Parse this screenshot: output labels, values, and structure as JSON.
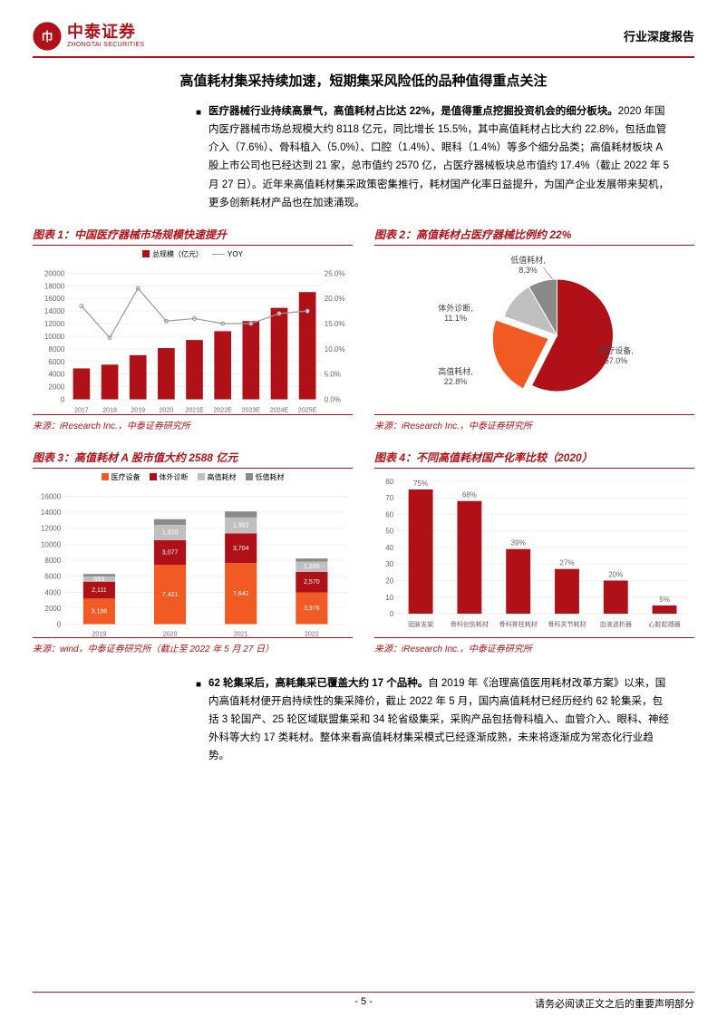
{
  "header": {
    "logo_cn": "中泰证券",
    "logo_en": "ZHONGTAI SECURITIES",
    "doc_type": "行业深度报告"
  },
  "section_title": "高值耗材集采持续加速，短期集采风险低的品种值得重点关注",
  "para1": {
    "bold": "医疗器械行业持续高景气，高值耗材占比达 22%，是值得重点挖掘投资机会的细分板块。",
    "rest": "2020 年国内医疗器械市场总规模大约 8118 亿元，同比增长 15.5%，其中高值耗材占比大约 22.8%，包括血管介入（7.6%）、骨科植入（5.0%）、口腔（1.4%）、眼科（1.4%）等多个细分品类；高值耗材板块 A 股上市公司也已经达到 21 家，总市值约 2570 亿，占医疗器械板块总市值约 17.4%（截止 2022 年 5 月 27 日）。近年来高值耗材集采政策密集推行，耗材国产化率日益提升，为国产企业发展带来契机，更多创新耗材产品也在加速涌现。"
  },
  "chart1": {
    "title": "图表 1：中国医疗器械市场规模快速提升",
    "type": "bar+line",
    "legend_bar": "总规模（亿元）",
    "legend_line": "YOY",
    "categories": [
      "2017",
      "2018",
      "2019",
      "2020",
      "2021E",
      "2022E",
      "2023E",
      "2024E",
      "2025E"
    ],
    "bar_values": [
      4900,
      5500,
      7000,
      8118,
      9400,
      10800,
      12400,
      14500,
      17000
    ],
    "line_values": [
      18.5,
      12.2,
      22.0,
      15.5,
      16.0,
      15.0,
      15.0,
      17.0,
      17.5
    ],
    "y_left_max": 20000,
    "y_left_step": 2000,
    "y_right_max": 25.0,
    "y_right_step": 5.0,
    "bar_color": "#b01017",
    "line_color": "#9a9a9a",
    "grid_color": "#e6e6e6",
    "source": "来源：iResearch Inc.，中泰证券研究所"
  },
  "chart2": {
    "title": "图表 2：高值耗材占医疗器械比例约 22%",
    "type": "pie",
    "slices": [
      {
        "label": "医疗设备",
        "value": 57.0,
        "color": "#b01017"
      },
      {
        "label": "高值耗材",
        "value": 22.8,
        "color": "#f15a22"
      },
      {
        "label": "体外诊断",
        "value": 11.1,
        "color": "#bfbfbf"
      },
      {
        "label": "低值耗材",
        "value": 8.3,
        "color": "#8a8a8a"
      }
    ],
    "label_fmt": [
      "医疗设备,\n57.0%",
      "高值耗材,\n22.8%",
      "体外诊断,\n11.1%",
      "低值耗材,\n8.3%"
    ],
    "source": "来源：iResearch Inc.，中泰证券研究所"
  },
  "chart3": {
    "title": "图表 3：高值耗材 A 股市值大约 2588 亿元",
    "type": "stacked-bar",
    "legend": [
      {
        "label": "医疗设备",
        "color": "#f15a22"
      },
      {
        "label": "体外诊断",
        "color": "#b01017"
      },
      {
        "label": "高值耗材",
        "color": "#c0c0c0"
      },
      {
        "label": "低值耗材",
        "color": "#8a8a8a"
      }
    ],
    "categories": [
      "2019",
      "2020",
      "2021",
      "2022"
    ],
    "stacks": [
      [
        3198,
        2111,
        659,
        300
      ],
      [
        7421,
        3077,
        1920,
        700
      ],
      [
        7642,
        3704,
        1992,
        750
      ],
      [
        3976,
        2570,
        1265,
        400
      ]
    ],
    "y_max": 16000,
    "y_step": 2000,
    "grid_color": "#e6e6e6",
    "source": "来源：wind，中泰证券研究所（截止至 2022 年 5 月 27 日）"
  },
  "chart4": {
    "title": "图表 4：不同高值耗材国产化率比较（2020）",
    "type": "bar",
    "categories": [
      "冠脉支架",
      "骨科创伤耗材",
      "骨科脊柱耗材",
      "骨科关节耗材",
      "血液透析器",
      "心脏起搏器"
    ],
    "values": [
      75,
      68,
      39,
      27,
      20,
      5
    ],
    "value_labels": [
      "75%",
      "68%",
      "39%",
      "27%",
      "20%",
      "5%"
    ],
    "y_max": 80,
    "y_step": 10,
    "bar_color": "#b01017",
    "grid_color": "#e6e6e6",
    "source": "来源：iResearch Inc.，中泰证券研究所"
  },
  "para2": {
    "bold": "62 轮集采后，高耗集采已覆盖大约 17 个品种。",
    "rest": "自 2019 年《治理高值医用耗材改革方案》以来，国内高值耗材便开启持续性的集采降价，截止 2022 年 5 月，国内高值耗材已经历经约 62 轮集采，包括 3 轮国产、25 轮区域联盟集采和 34 轮省级集采，采购产品包括骨科植入、血管介入、眼科、神经外科等大约 17 类耗材。整体来看高值耗材集采模式已经逐渐成熟，未来将逐渐成为常态化行业趋势。"
  },
  "footer": {
    "page": "- 5 -",
    "disclaimer": "请务必阅读正文之后的重要声明部分"
  },
  "colors": {
    "brand": "#b01017",
    "orange": "#f15a22",
    "grey": "#bfbfbf",
    "grey_dark": "#8a8a8a"
  }
}
